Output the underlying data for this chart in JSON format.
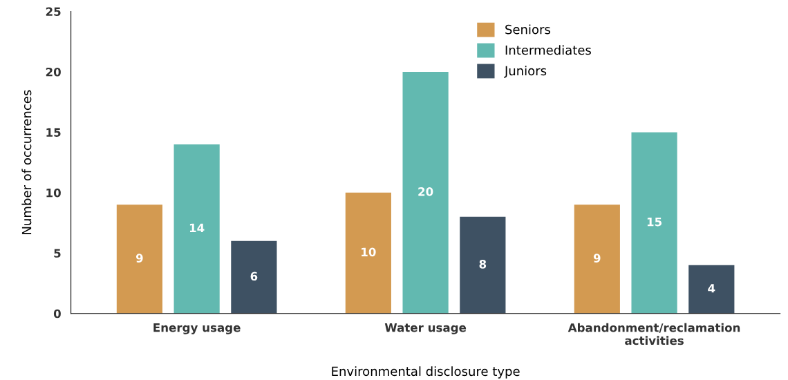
{
  "chart_data": {
    "type": "bar",
    "xlabel": "Environmental disclosure type",
    "ylabel": "Number of occurrences",
    "categories": [
      "Energy usage",
      "Water usage",
      "Abandonment/reclamation\nactivities"
    ],
    "series": [
      {
        "name": "Seniors",
        "color": "#d39a51",
        "values": [
          9,
          10,
          9
        ]
      },
      {
        "name": "Intermediates",
        "color": "#62b9b0",
        "values": [
          14,
          20,
          15
        ]
      },
      {
        "name": "Juniors",
        "color": "#3e5163",
        "values": [
          6,
          8,
          4
        ]
      }
    ],
    "ylim": [
      0,
      25
    ],
    "yticks": [
      0,
      5,
      10,
      15,
      20,
      25
    ],
    "grid": false,
    "legend": "top right",
    "data_labels": true
  }
}
